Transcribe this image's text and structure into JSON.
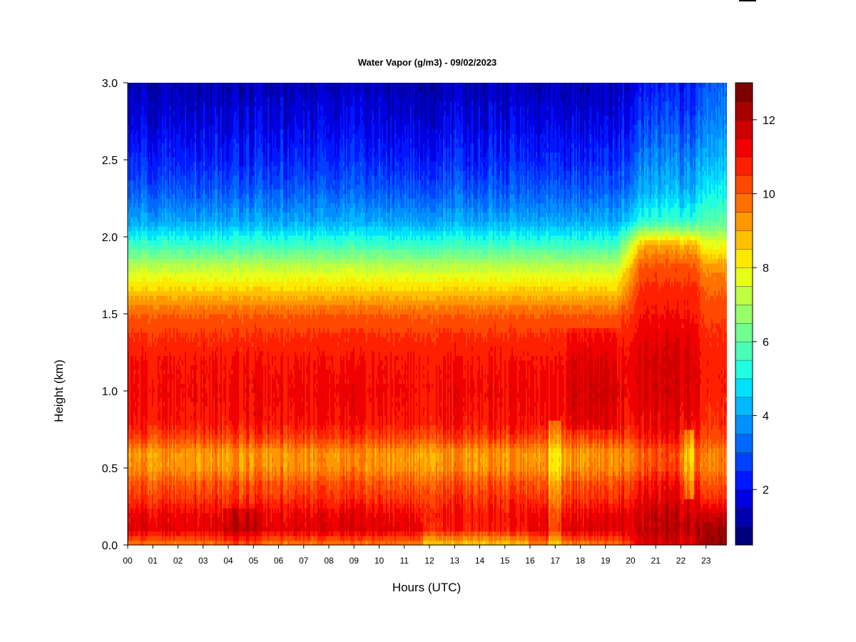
{
  "chart_data": {
    "type": "heatmap",
    "title": "Water Vapor (g/m3) - 09/02/2023",
    "xlabel": "Hours (UTC)",
    "ylabel": "Height (km)",
    "x_ticks": [
      "00",
      "01",
      "02",
      "03",
      "04",
      "05",
      "06",
      "07",
      "08",
      "09",
      "10",
      "11",
      "12",
      "13",
      "14",
      "15",
      "16",
      "17",
      "18",
      "19",
      "20",
      "21",
      "22",
      "23"
    ],
    "xlim": [
      0,
      23.9
    ],
    "y_ticks": [
      "0.0",
      "0.5",
      "1.0",
      "1.5",
      "2.0",
      "2.5",
      "3.0"
    ],
    "ylim": [
      0.0,
      3.0
    ],
    "colorbar": {
      "ticks": [
        "2",
        "4",
        "6",
        "8",
        "10",
        "12"
      ],
      "range": [
        0.5,
        13
      ],
      "levels": 25,
      "colors": [
        "#00007f",
        "#0000b0",
        "#0000e0",
        "#0018ff",
        "#0040ff",
        "#0068ff",
        "#0090ff",
        "#00b8ff",
        "#00e0ff",
        "#20ffe0",
        "#48ffb8",
        "#70ff90",
        "#98ff68",
        "#c0ff40",
        "#e8ff18",
        "#ffe800",
        "#ffc000",
        "#ff9800",
        "#ff7000",
        "#ff4800",
        "#ff2000",
        "#f00000",
        "#d00000",
        "#a80000",
        "#800000"
      ]
    },
    "z_values_g_m3": {
      "height_km": [
        0.0,
        0.1,
        0.2,
        0.3,
        0.4,
        0.5,
        0.6,
        0.7,
        0.8,
        1.0,
        1.2,
        1.35,
        1.5,
        1.65,
        1.8,
        1.95,
        2.1,
        2.3,
        2.5,
        2.75,
        3.0
      ],
      "profile_00_19": [
        9.5,
        11.5,
        11.3,
        10.6,
        10.2,
        9.4,
        9.3,
        10.4,
        11.0,
        11.2,
        11.0,
        10.6,
        10.0,
        8.6,
        7.3,
        5.6,
        4.1,
        3.1,
        2.4,
        1.8,
        1.3
      ],
      "profile_20_22": [
        11.6,
        11.9,
        11.8,
        11.4,
        11.0,
        10.2,
        10.0,
        10.9,
        11.3,
        11.6,
        11.6,
        11.4,
        11.0,
        10.7,
        10.2,
        9.0,
        5.5,
        4.2,
        3.6,
        2.8,
        2.2
      ],
      "profile_23": [
        12.5,
        12.4,
        11.8,
        10.6,
        10.2,
        9.6,
        9.6,
        10.3,
        10.6,
        10.8,
        10.8,
        10.6,
        10.3,
        10.0,
        9.3,
        7.8,
        6.0,
        5.0,
        4.3,
        3.6,
        3.1
      ]
    }
  }
}
